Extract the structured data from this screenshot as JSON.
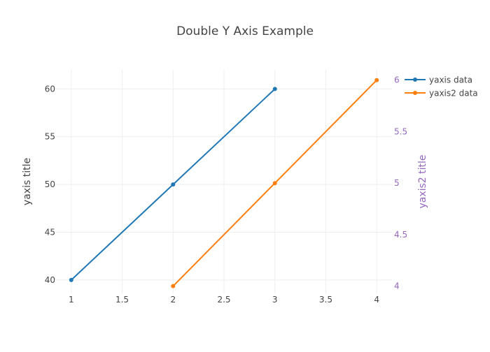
{
  "chart_data": {
    "type": "line",
    "title": "Double Y Axis Example",
    "yaxis": {
      "title": "yaxis title",
      "range": [
        38.6,
        62.0
      ],
      "ticks": [
        40,
        45,
        50,
        55,
        60
      ],
      "tick_labels": [
        "40",
        "45",
        "50",
        "55",
        "60"
      ]
    },
    "yaxis2": {
      "title": "yaxis2 title",
      "range": [
        3.93,
        6.1
      ],
      "ticks": [
        4,
        4.5,
        5,
        5.5,
        6
      ],
      "tick_labels": [
        "4",
        "4.5",
        "5",
        "5.5",
        "6"
      ],
      "color": "#9467bd"
    },
    "xaxis": {
      "range": [
        0.85,
        4.15
      ],
      "ticks": [
        1,
        1.5,
        2,
        2.5,
        3,
        3.5,
        4
      ],
      "tick_labels": [
        "1",
        "1.5",
        "2",
        "2.5",
        "3",
        "3.5",
        "4"
      ]
    },
    "series": [
      {
        "name": "yaxis data",
        "axis": "y",
        "color": "#1f77b4",
        "x": [
          1,
          2,
          3
        ],
        "y": [
          40,
          50,
          60
        ]
      },
      {
        "name": "yaxis2 data",
        "axis": "y2",
        "color": "#ff7f0e",
        "x": [
          2,
          3,
          4
        ],
        "y": [
          4,
          5,
          6
        ]
      }
    ],
    "grid": true,
    "legend": "top-right"
  }
}
